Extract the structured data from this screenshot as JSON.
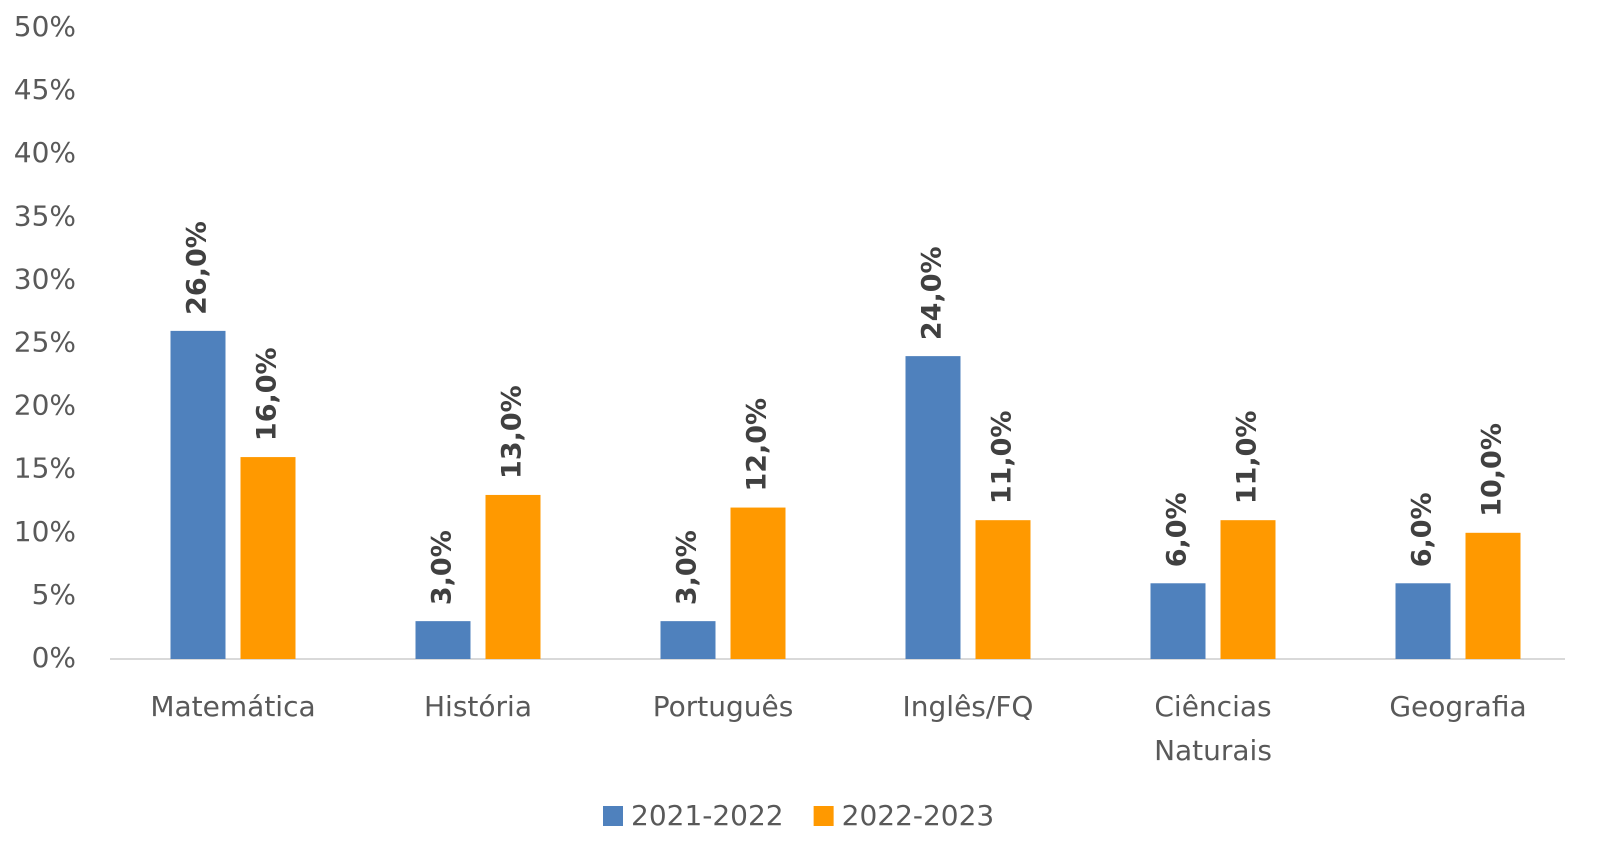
{
  "chart_data": {
    "type": "bar",
    "categories": [
      "Matemática",
      "História",
      "Português",
      "Inglês/FQ",
      "Ciências Naturais",
      "Geografia"
    ],
    "series": [
      {
        "name": "2021-2022",
        "color": "#4f81bd",
        "values": [
          26,
          3,
          3,
          24,
          6,
          6
        ],
        "value_labels": [
          "26,0%",
          "3,0%",
          "3,0%",
          "24,0%",
          "6,0%",
          "6,0%"
        ]
      },
      {
        "name": "2022-2023",
        "color": "#ff9900",
        "values": [
          16,
          13,
          12,
          11,
          11,
          10
        ],
        "value_labels": [
          "16,0%",
          "13,0%",
          "12,0%",
          "11,0%",
          "11,0%",
          "10,0%"
        ]
      }
    ],
    "ylim": [
      0,
      50
    ],
    "yticks": [
      {
        "value": 0,
        "label": "0%"
      },
      {
        "value": 5,
        "label": "5%"
      },
      {
        "value": 10,
        "label": "10%"
      },
      {
        "value": 15,
        "label": "15%"
      },
      {
        "value": 20,
        "label": "20%"
      },
      {
        "value": 25,
        "label": "25%"
      },
      {
        "value": 30,
        "label": "30%"
      },
      {
        "value": 35,
        "label": "35%"
      },
      {
        "value": 40,
        "label": "40%"
      },
      {
        "value": 45,
        "label": "45%"
      },
      {
        "value": 50,
        "label": "50%"
      }
    ],
    "grid": false,
    "legend": "bottom"
  }
}
